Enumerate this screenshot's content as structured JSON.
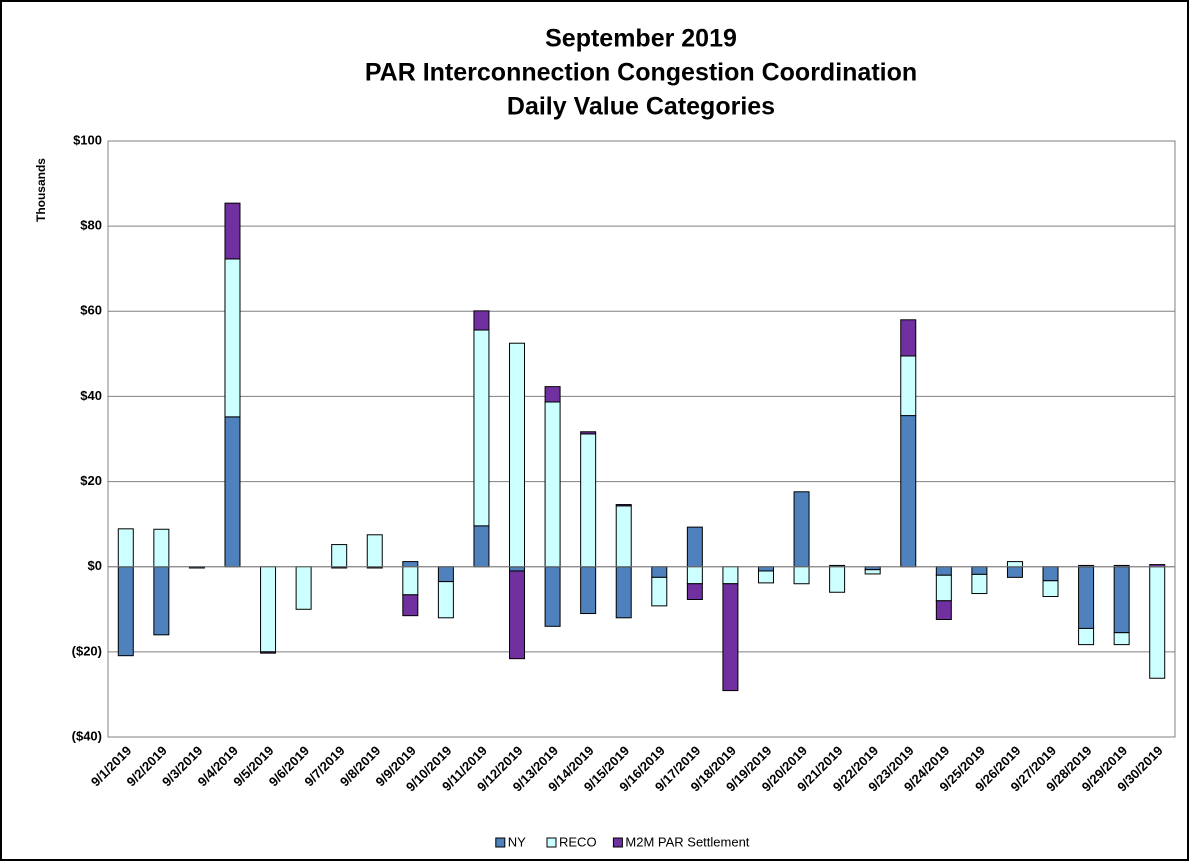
{
  "chart_data": {
    "type": "stacked_bar",
    "title": [
      "September 2019",
      "PAR Interconnection Congestion Coordination",
      "Daily Value Categories"
    ],
    "y_axis_label": "Thousands",
    "categories": [
      "9/1/2019",
      "9/2/2019",
      "9/3/2019",
      "9/4/2019",
      "9/5/2019",
      "9/6/2019",
      "9/7/2019",
      "9/8/2019",
      "9/9/2019",
      "9/10/2019",
      "9/11/2019",
      "9/12/2019",
      "9/13/2019",
      "9/14/2019",
      "9/15/2019",
      "9/16/2019",
      "9/17/2019",
      "9/18/2019",
      "9/19/2019",
      "9/20/2019",
      "9/21/2019",
      "9/22/2019",
      "9/23/2019",
      "9/24/2019",
      "9/25/2019",
      "9/26/2019",
      "9/27/2019",
      "9/28/2019",
      "9/29/2019",
      "9/30/2019"
    ],
    "series": [
      {
        "name": "NY",
        "color": "#4f81bd",
        "values": [
          -20.9,
          -16,
          -0.3,
          35.2,
          0,
          0,
          -0.3,
          -0.3,
          1.2,
          -3.5,
          9.6,
          -1,
          -14,
          -11,
          -12,
          -2.5,
          9.3,
          0,
          -1,
          17.6,
          0.3,
          -0.7,
          35.5,
          -2,
          -1.8,
          -2.5,
          -3.3,
          -14.5,
          -15.5,
          0
        ]
      },
      {
        "name": "RECO",
        "color": "#ccffff",
        "values": [
          8.9,
          8.8,
          0,
          37.1,
          -20,
          -10,
          5.2,
          7.5,
          -6.6,
          -8.5,
          46,
          52.5,
          38.7,
          31.2,
          14.3,
          -6.7,
          -4,
          -4,
          -2.8,
          -4,
          -6,
          -1,
          14,
          -6,
          -4.5,
          1.2,
          -3.7,
          -3.8,
          -2.8,
          -26.2
        ]
      },
      {
        "name": "M2M PAR Settlement",
        "color": "#7030a0",
        "values": [
          0,
          0,
          0,
          13.1,
          -0.3,
          0,
          0,
          0,
          -4.9,
          0,
          4.5,
          -20.6,
          3.6,
          0.5,
          0.3,
          0,
          -3.7,
          -25.1,
          0,
          0,
          0,
          0,
          8.5,
          -4.4,
          0,
          0,
          0,
          0.3,
          0.3,
          0.5
        ]
      }
    ],
    "ylim": [
      -40,
      100
    ],
    "yticks": [
      {
        "value": -40,
        "label": "($40)"
      },
      {
        "value": -20,
        "label": "($20)"
      },
      {
        "value": 0,
        "label": "$0"
      },
      {
        "value": 20,
        "label": "$20"
      },
      {
        "value": 40,
        "label": "$40"
      },
      {
        "value": 60,
        "label": "$60"
      },
      {
        "value": 80,
        "label": "$80"
      },
      {
        "value": 100,
        "label": "$100"
      }
    ],
    "negative_tick_color": "#ff0000",
    "grid": true,
    "legend": "bottom"
  }
}
